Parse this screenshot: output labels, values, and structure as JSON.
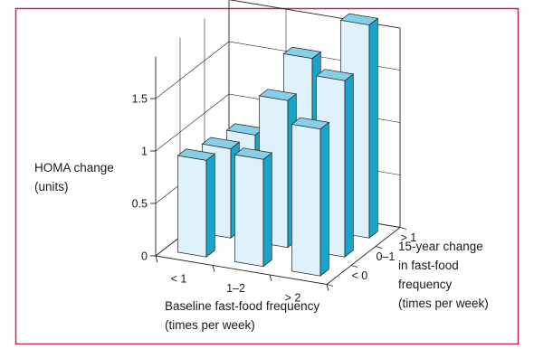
{
  "colors": {
    "frame": "#c8224a",
    "bar_front": "#dff1fa",
    "bar_side": "#19a4cc",
    "bar_top": "#86cfe6",
    "axis": "#222222"
  },
  "chart_data": {
    "type": "bar",
    "projection": "3d",
    "title": "",
    "zlabel_lines": [
      "HOMA change",
      "(units)"
    ],
    "xlabel_lines": [
      "Baseline fast-food frequency",
      "(times per week)"
    ],
    "ylabel_lines": [
      "15-year change",
      "in fast-food",
      "frequency",
      "(times per week)"
    ],
    "zlim": [
      0,
      1.9
    ],
    "z_ticks": [
      {
        "value": 0,
        "label": "0"
      },
      {
        "value": 0.5,
        "label": "0.5"
      },
      {
        "value": 1,
        "label": "1"
      },
      {
        "value": 1.5,
        "label": "1.5"
      }
    ],
    "x_categories": [
      "< 1",
      "1–2",
      "> 2"
    ],
    "y_categories": [
      "< 0",
      "0–1",
      "> 1"
    ],
    "values": [
      [
        0.92,
        1.02,
        1.4
      ],
      [
        0.85,
        1.4,
        1.68
      ],
      [
        0.8,
        1.62,
        2.03
      ]
    ],
    "grid": true
  }
}
